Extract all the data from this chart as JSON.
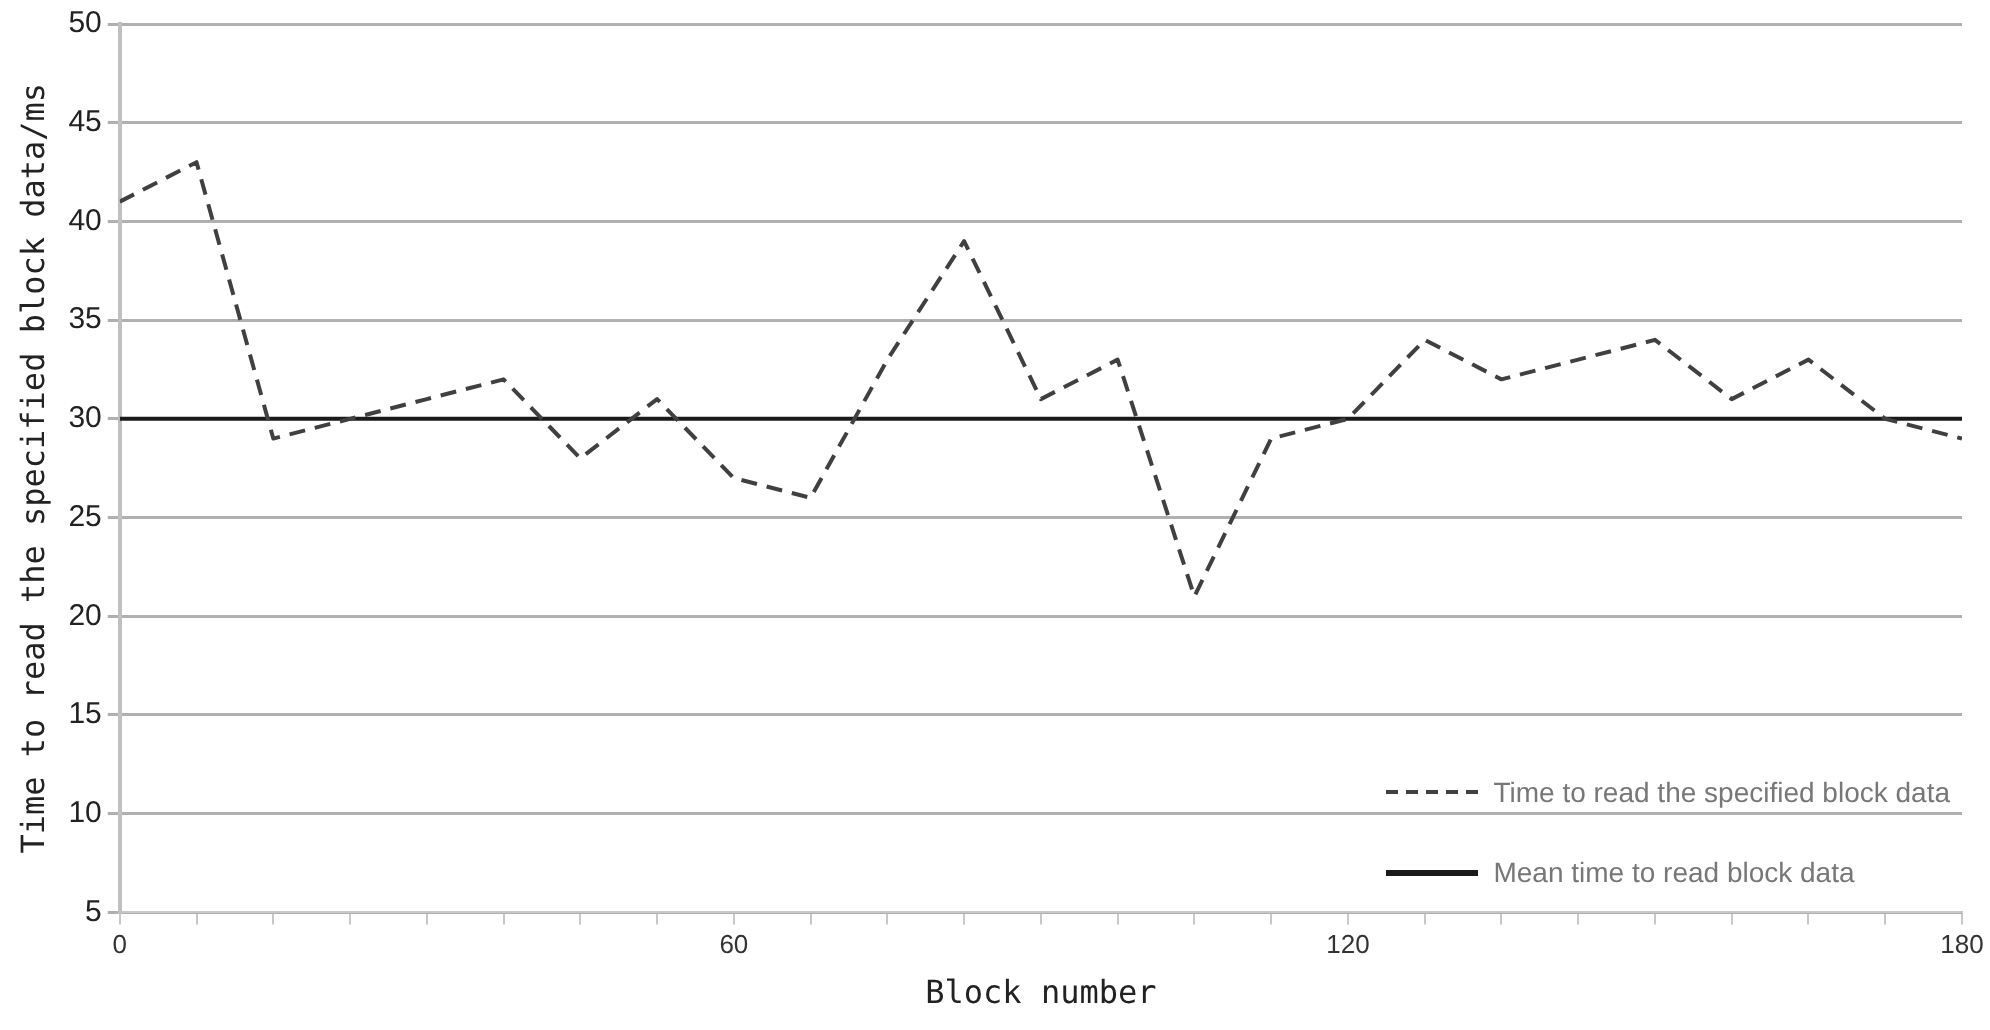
{
  "chart_data": {
    "type": "line",
    "xlabel": "Block number",
    "ylabel": "Time to read the specified block data/ms",
    "xlim": [
      0,
      180
    ],
    "xticks": [
      0,
      {
        "value": 7.5,
        "label": null
      },
      {
        "value": 15,
        "label": null
      },
      {
        "value": 22.5,
        "label": null
      },
      {
        "value": 30,
        "label": null
      },
      {
        "value": 37.5,
        "label": null
      },
      {
        "value": 45,
        "label": null
      },
      {
        "value": 52.5,
        "label": null
      },
      60,
      {
        "value": 67.5,
        "label": null
      },
      {
        "value": 75,
        "label": null
      },
      {
        "value": 82.5,
        "label": null
      },
      {
        "value": 90,
        "label": null
      },
      {
        "value": 97.5,
        "label": null
      },
      {
        "value": 105,
        "label": null
      },
      {
        "value": 112.5,
        "label": null
      },
      120,
      {
        "value": 127.5,
        "label": null
      },
      {
        "value": 135,
        "label": null
      },
      {
        "value": 142.5,
        "label": null
      },
      {
        "value": 150,
        "label": null
      },
      {
        "value": 157.5,
        "label": null
      },
      {
        "value": 165,
        "label": null
      },
      {
        "value": 172.5,
        "label": null
      },
      180
    ],
    "ylim": [
      5,
      50
    ],
    "yticks": [
      5,
      10,
      15,
      20,
      25,
      30,
      35,
      40,
      45,
      50
    ],
    "grid": "y",
    "legend": "bottom right",
    "marker": "none",
    "series": [
      {
        "name": "Time to read the specified block data",
        "color": "#404040",
        "line_style": "dashed",
        "x": [
          0,
          7.5,
          15,
          22.5,
          30,
          37.5,
          45,
          52.5,
          60,
          67.5,
          75,
          82.5,
          90,
          97.5,
          105,
          112.5,
          120,
          127.5,
          135,
          142.5,
          150,
          157.5,
          165,
          172.5,
          180
        ],
        "values": [
          41,
          43,
          29,
          30,
          31,
          32,
          28,
          31,
          27,
          26,
          33,
          39,
          31,
          33,
          21,
          29,
          30,
          34,
          32,
          33,
          34,
          31,
          33,
          30,
          29
        ]
      },
      {
        "name": "Mean time to read block data",
        "color": "#1a1a1a",
        "line_style": "solid",
        "x": [
          0,
          180
        ],
        "values": [
          30,
          30
        ]
      }
    ]
  }
}
